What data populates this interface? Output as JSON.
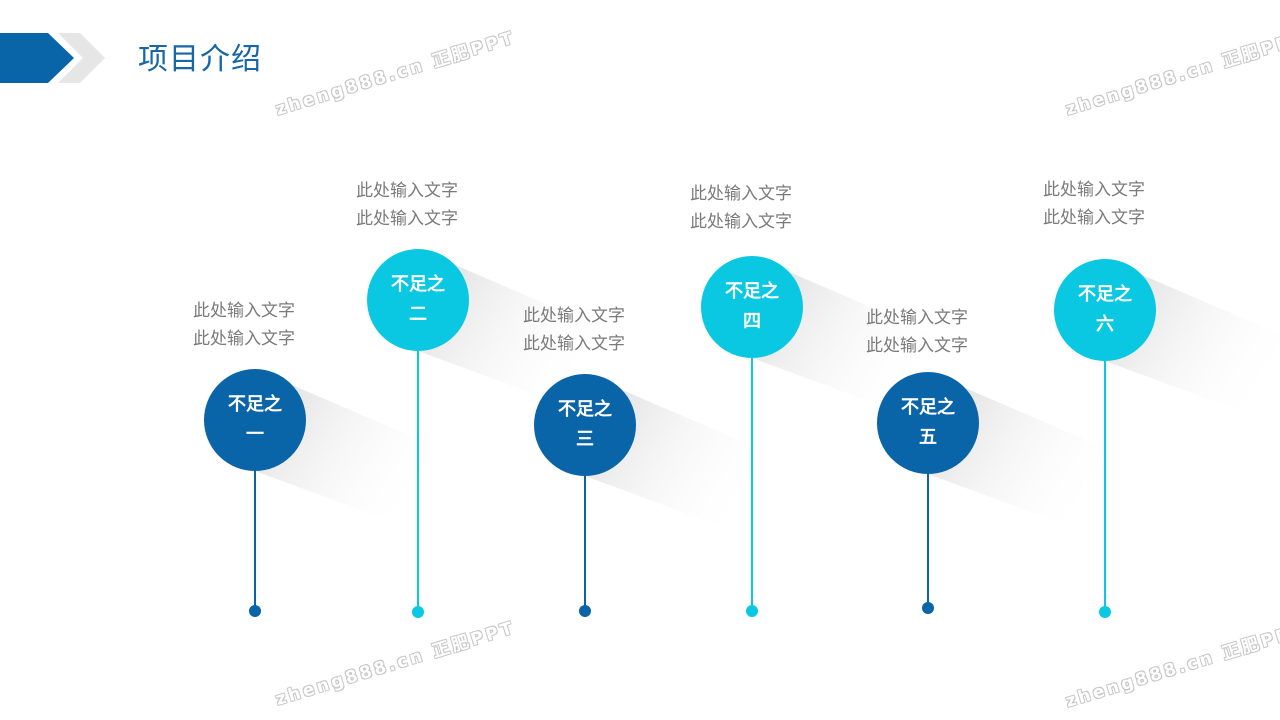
{
  "header": {
    "title": "项目介绍"
  },
  "colors": {
    "dark_blue": "#0a64a8",
    "cyan": "#0bc8e2",
    "chevron_gray": "#e6e6e6",
    "text_gray": "#7a7a7a"
  },
  "items": [
    {
      "line1": "不足之",
      "line2": "一",
      "desc1": "此处输入文字",
      "desc2": "此处输入文字",
      "color": "dark"
    },
    {
      "line1": "不足之",
      "line2": "二",
      "desc1": "此处输入文字",
      "desc2": "此处输入文字",
      "color": "cyan"
    },
    {
      "line1": "不足之",
      "line2": "三",
      "desc1": "此处输入文字",
      "desc2": "此处输入文字",
      "color": "dark"
    },
    {
      "line1": "不足之",
      "line2": "四",
      "desc1": "此处输入文字",
      "desc2": "此处输入文字",
      "color": "cyan"
    },
    {
      "line1": "不足之",
      "line2": "五",
      "desc1": "此处输入文字",
      "desc2": "此处输入文字",
      "color": "dark"
    },
    {
      "line1": "不足之",
      "line2": "六",
      "desc1": "此处输入文字",
      "desc2": "此处输入文字",
      "color": "cyan"
    }
  ],
  "watermark": "zheng888.cn 正肥PPT"
}
